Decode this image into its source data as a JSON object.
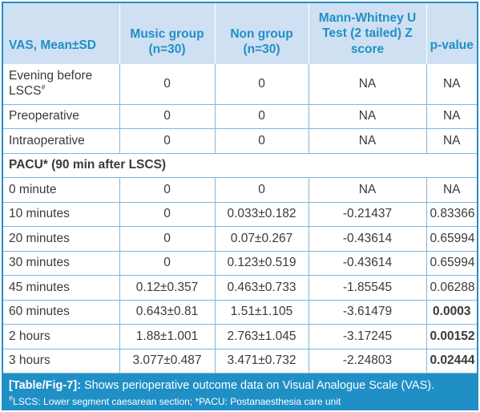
{
  "table": {
    "headers": [
      "VAS, Mean±SD",
      "Music group\n(n=30)",
      "Non group\n(n=30)",
      "Mann-Whitney U Test (2 tailed) Z score",
      "p-value"
    ],
    "rows_top": [
      {
        "label": "Evening before LSCS",
        "sup": "#",
        "music": "0",
        "non": "0",
        "z": "NA",
        "p": "NA",
        "p_bold": false
      },
      {
        "label": "Preoperative",
        "sup": "",
        "music": "0",
        "non": "0",
        "z": "NA",
        "p": "NA",
        "p_bold": false
      },
      {
        "label": "Intraoperative",
        "sup": "",
        "music": "0",
        "non": "0",
        "z": "NA",
        "p": "NA",
        "p_bold": false
      }
    ],
    "section": "PACU* (90 min after LSCS)",
    "rows_pacu": [
      {
        "label": "0 minute",
        "music": "0",
        "non": "0",
        "z": "NA",
        "p": "NA",
        "p_bold": false
      },
      {
        "label": "10 minutes",
        "music": "0",
        "non": "0.033±0.182",
        "z": "-0.21437",
        "p": "0.83366",
        "p_bold": false
      },
      {
        "label": "20 minutes",
        "music": "0",
        "non": "0.07±0.267",
        "z": "-0.43614",
        "p": "0.65994",
        "p_bold": false
      },
      {
        "label": "30 minutes",
        "music": "0",
        "non": "0.123±0.519",
        "z": "-0.43614",
        "p": "0.65994",
        "p_bold": false
      },
      {
        "label": "45 minutes",
        "music": "0.12±0.357",
        "non": "0.463±0.733",
        "z": "-1.85545",
        "p": "0.06288",
        "p_bold": false
      },
      {
        "label": "60 minutes",
        "music": "0.643±0.81",
        "non": "1.51±1.105",
        "z": "-3.61479",
        "p": "0.0003",
        "p_bold": true
      },
      {
        "label": "2 hours",
        "music": "1.88±1.001",
        "non": "2.763±1.045",
        "z": "-3.17245",
        "p": "0.00152",
        "p_bold": true
      },
      {
        "label": "3 hours",
        "music": "3.077±0.487",
        "non": "3.471±0.732",
        "z": "-2.24803",
        "p": "0.02444",
        "p_bold": true
      }
    ]
  },
  "caption": {
    "fig_label": "[Table/Fig-7]:",
    "text": " Shows perioperative outcome data on Visual Analogue Scale (VAS).",
    "footnote_sup": "#",
    "footnote": "LSCS: Lower segment caesarean section; *PACU: Postanaesthesia care unit"
  },
  "colors": {
    "accent": "#1f8fc6",
    "header_bg": "#cfe0f2",
    "grid": "#7fb7de",
    "text": "#3a3a3a"
  }
}
